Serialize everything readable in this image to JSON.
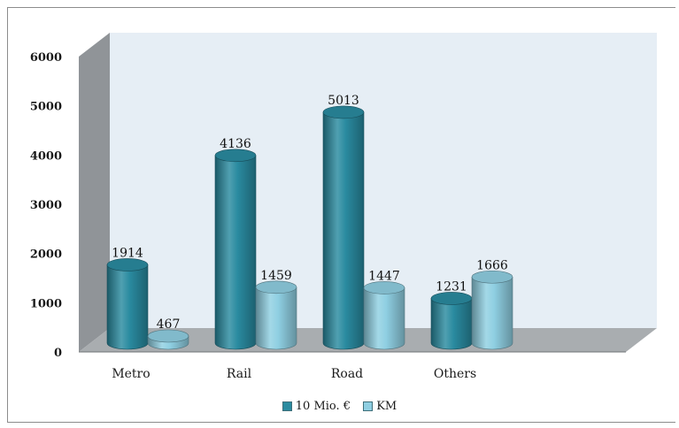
{
  "chart_data": {
    "type": "bar",
    "title": "",
    "xlabel": "",
    "ylabel": "",
    "categories": [
      "Metro",
      "Rail",
      "Road",
      "Others"
    ],
    "series": [
      {
        "name": "10 Mio. €",
        "values": [
          1914,
          4136,
          5013,
          1231
        ],
        "color": "#2a8ba0"
      },
      {
        "name": "KM",
        "values": [
          467,
          1459,
          1447,
          1666
        ],
        "color": "#8fcfe2"
      }
    ],
    "ylim": [
      0,
      6000
    ],
    "yticks": [
      0,
      1000,
      2000,
      3000,
      4000,
      5000,
      6000
    ],
    "data_labels": true,
    "grid": false,
    "legend_position": "bottom",
    "style": "3d-cylinder",
    "wall_color": "#e6eef5",
    "floor_color": "#a9adb0"
  }
}
